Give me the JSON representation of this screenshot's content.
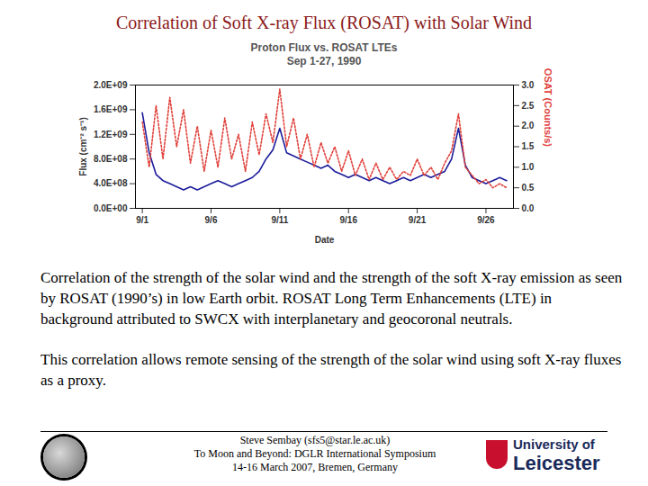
{
  "slide": {
    "title": "Correlation of Soft X-ray Flux (ROSAT) with Solar Wind",
    "caption": [
      "Correlation of the strength of the solar wind and the strength of the soft X-ray emission as seen by ROSAT (1990’s) in low Earth orbit. ROSAT Long Term Enhancements (LTE) in background attributed to SWCX with interplanetary and geocoronal neutrals.",
      "This correlation allows remote sensing of the strength of the solar wind using soft X-ray fluxes as a proxy."
    ],
    "footer": [
      "Steve Sembay (sfs5@star.le.ac.uk)",
      "To Moon and Beyond: DGLR International Symposium",
      "14-16 March 2007, Bremen, Germany"
    ],
    "logo_text": [
      "University of",
      "Leicester"
    ]
  },
  "chart_data": {
    "type": "line",
    "title": "Proton Flux vs. ROSAT LTEs",
    "subtitle": "Sep 1-27, 1990",
    "x_label": "Date",
    "y_label": "Flux (cm⁻² s⁻¹)",
    "y2_label": "ROSAT (Counts/s)",
    "x": [
      1,
      1.5,
      2,
      2.5,
      3,
      3.5,
      4,
      4.5,
      5,
      5.5,
      6,
      6.5,
      7,
      7.5,
      8,
      8.5,
      9,
      9.5,
      10,
      10.5,
      11,
      11.5,
      12,
      12.5,
      13,
      13.5,
      14,
      14.5,
      15,
      15.5,
      16,
      16.5,
      17,
      17.5,
      18,
      18.5,
      19,
      19.5,
      20,
      20.5,
      21,
      21.5,
      22,
      22.5,
      23,
      23.5,
      24,
      24.5,
      25,
      25.5,
      26,
      26.5,
      27,
      27.5
    ],
    "xlim": [
      0.5,
      28
    ],
    "xticks": [
      {
        "value": 1,
        "label": "9/1"
      },
      {
        "value": 6,
        "label": "9/6"
      },
      {
        "value": 11,
        "label": "9/11"
      },
      {
        "value": 16,
        "label": "9/16"
      },
      {
        "value": 21,
        "label": "9/21"
      },
      {
        "value": 26,
        "label": "9/26"
      }
    ],
    "ylim": [
      0,
      2000000000
    ],
    "yticks": [
      {
        "value": 0,
        "label": "0.0E+00"
      },
      {
        "value": 400000000,
        "label": "4.0E+08"
      },
      {
        "value": 800000000,
        "label": "8.0E+08"
      },
      {
        "value": 1200000000,
        "label": "1.2E+09"
      },
      {
        "value": 1600000000,
        "label": "1.6E+09"
      },
      {
        "value": 2000000000,
        "label": "2.0E+09"
      }
    ],
    "y2lim": [
      0,
      3
    ],
    "y2ticks": [
      {
        "value": 0,
        "label": "0.0"
      },
      {
        "value": 0.5,
        "label": "0.5"
      },
      {
        "value": 1,
        "label": "1.0"
      },
      {
        "value": 1.5,
        "label": "1.5"
      },
      {
        "value": 2,
        "label": "2.0"
      },
      {
        "value": 2.5,
        "label": "2.5"
      },
      {
        "value": 3,
        "label": "3.0"
      }
    ],
    "grid": false,
    "series": [
      {
        "name": "Proton Flux",
        "color": "#1c1c9c",
        "line_style": "solid",
        "values": [
          1550000000,
          900000000,
          550000000,
          450000000,
          400000000,
          350000000,
          300000000,
          350000000,
          300000000,
          350000000,
          400000000,
          450000000,
          400000000,
          350000000,
          400000000,
          450000000,
          500000000,
          600000000,
          800000000,
          950000000,
          1300000000,
          900000000,
          850000000,
          800000000,
          750000000,
          700000000,
          650000000,
          700000000,
          600000000,
          550000000,
          500000000,
          550000000,
          500000000,
          450000000,
          500000000,
          450000000,
          400000000,
          450000000,
          500000000,
          450000000,
          500000000,
          550000000,
          500000000,
          550000000,
          600000000,
          800000000,
          1300000000,
          700000000,
          500000000,
          450000000,
          400000000,
          450000000,
          500000000,
          450000000
        ]
      },
      {
        "name": "ROSAT",
        "color": "#e0403a",
        "line_style": "dotted",
        "axis": "y2",
        "values": [
          2.1,
          1.0,
          2.5,
          1.2,
          2.7,
          1.5,
          2.4,
          1.1,
          2.0,
          0.9,
          1.9,
          1.0,
          2.2,
          1.2,
          1.8,
          0.9,
          2.1,
          1.3,
          2.3,
          1.6,
          2.9,
          1.5,
          2.2,
          1.2,
          1.8,
          1.0,
          1.6,
          1.1,
          1.5,
          0.9,
          1.4,
          0.8,
          1.2,
          0.7,
          1.1,
          0.7,
          1.0,
          0.7,
          0.9,
          0.8,
          1.2,
          0.8,
          1.0,
          0.7,
          1.1,
          1.4,
          2.3,
          1.0,
          0.8,
          0.6,
          0.7,
          0.5,
          0.6,
          0.5
        ]
      }
    ]
  }
}
